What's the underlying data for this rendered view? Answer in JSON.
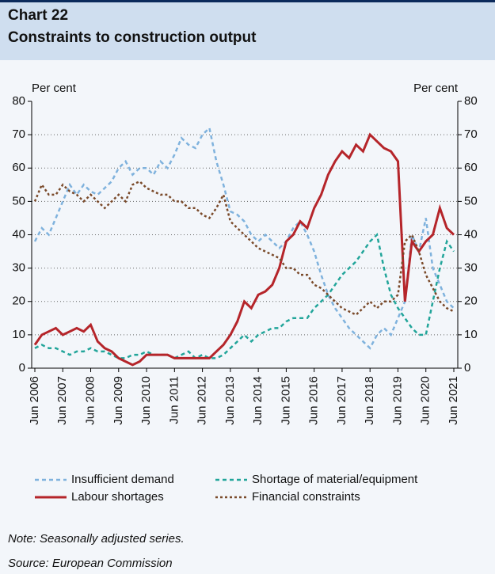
{
  "chart_data": {
    "type": "line",
    "title": "Chart 22",
    "subtitle": "Constraints to construction output",
    "y_label": "Per cent",
    "y2_label": "Per cent",
    "note": "Note: Seasonally adjusted series.",
    "source": "Source: European Commission",
    "x": [
      "2006-06",
      "2006-09",
      "2006-12",
      "2007-03",
      "2007-06",
      "2007-09",
      "2007-12",
      "2008-03",
      "2008-06",
      "2008-09",
      "2008-12",
      "2009-03",
      "2009-06",
      "2009-09",
      "2009-12",
      "2010-03",
      "2010-06",
      "2010-09",
      "2010-12",
      "2011-03",
      "2011-06",
      "2011-09",
      "2011-12",
      "2012-03",
      "2012-06",
      "2012-09",
      "2012-12",
      "2013-03",
      "2013-06",
      "2013-09",
      "2013-12",
      "2014-03",
      "2014-06",
      "2014-09",
      "2014-12",
      "2015-03",
      "2015-06",
      "2015-09",
      "2015-12",
      "2016-03",
      "2016-06",
      "2016-09",
      "2016-12",
      "2017-03",
      "2017-06",
      "2017-09",
      "2017-12",
      "2018-03",
      "2018-06",
      "2018-09",
      "2018-12",
      "2019-03",
      "2019-06",
      "2019-09",
      "2019-12",
      "2020-03",
      "2020-06",
      "2020-09",
      "2020-12",
      "2021-03",
      "2021-06"
    ],
    "series": [
      {
        "name": "Insufficient demand",
        "color": "#7fb2dd",
        "style": "dashed",
        "values": [
          38,
          42,
          40,
          45,
          50,
          55,
          52,
          55,
          53,
          52,
          54,
          56,
          60,
          62,
          58,
          60,
          60,
          58,
          62,
          60,
          64,
          69,
          67,
          66,
          70,
          72,
          62,
          55,
          47,
          46,
          44,
          40,
          38,
          40,
          38,
          36,
          38,
          42,
          44,
          40,
          35,
          28,
          22,
          18,
          15,
          12,
          10,
          8,
          6,
          10,
          12,
          10,
          15,
          20,
          40,
          35,
          45,
          30,
          25,
          20,
          18
        ]
      },
      {
        "name": "Shortage of material/equipment",
        "color": "#22a59a",
        "style": "dashed",
        "values": [
          6,
          7,
          6,
          6,
          5,
          4,
          5,
          5,
          6,
          5,
          5,
          4,
          3,
          3,
          4,
          4,
          5,
          4,
          4,
          4,
          3,
          4,
          5,
          3,
          4,
          3,
          3,
          4,
          6,
          8,
          10,
          8,
          10,
          11,
          12,
          12,
          14,
          15,
          15,
          15,
          18,
          20,
          22,
          25,
          28,
          30,
          32,
          35,
          38,
          40,
          30,
          22,
          18,
          15,
          12,
          10,
          10,
          20,
          30,
          38,
          35
        ]
      },
      {
        "name": "Labour shortages",
        "color": "#b5252a",
        "style": "solid",
        "values": [
          7,
          10,
          11,
          12,
          10,
          11,
          12,
          11,
          13,
          8,
          6,
          5,
          3,
          2,
          1,
          2,
          4,
          4,
          4,
          4,
          3,
          3,
          3,
          3,
          3,
          3,
          5,
          7,
          10,
          14,
          20,
          18,
          22,
          23,
          25,
          30,
          38,
          40,
          44,
          42,
          48,
          52,
          58,
          62,
          65,
          63,
          67,
          65,
          70,
          68,
          66,
          65,
          62,
          20,
          38,
          35,
          38,
          40,
          48,
          42,
          40
        ]
      },
      {
        "name": "Financial constraints",
        "color": "#7a4a2a",
        "style": "dotted",
        "values": [
          50,
          55,
          52,
          52,
          55,
          53,
          52,
          50,
          52,
          50,
          48,
          50,
          52,
          50,
          55,
          56,
          54,
          53,
          52,
          52,
          50,
          50,
          48,
          48,
          46,
          45,
          48,
          52,
          44,
          42,
          40,
          38,
          36,
          35,
          34,
          33,
          30,
          30,
          28,
          28,
          25,
          24,
          22,
          20,
          18,
          17,
          16,
          18,
          20,
          18,
          20,
          20,
          22,
          38,
          40,
          35,
          28,
          24,
          20,
          18,
          17
        ]
      }
    ],
    "xlim": [
      "2006-06",
      "2021-06"
    ],
    "xticks": [
      {
        "value": "2006-06",
        "label": "Jun 2006"
      },
      {
        "value": "2007-06",
        "label": "Jun 2007"
      },
      {
        "value": "2008-06",
        "label": "Jun 2008"
      },
      {
        "value": "2009-06",
        "label": "Jun 2009"
      },
      {
        "value": "2010-06",
        "label": "Jun 2010"
      },
      {
        "value": "2011-06",
        "label": "Jun 2011"
      },
      {
        "value": "2012-06",
        "label": "Jun 2012"
      },
      {
        "value": "2013-06",
        "label": "Jun 2013"
      },
      {
        "value": "2014-06",
        "label": "Jun 2014"
      },
      {
        "value": "2015-06",
        "label": "Jun 2015"
      },
      {
        "value": "2016-06",
        "label": "Jun 2016"
      },
      {
        "value": "2017-06",
        "label": "Jun 2017"
      },
      {
        "value": "2018-06",
        "label": "Jun 2018"
      },
      {
        "value": "2019-06",
        "label": "Jun 2019"
      },
      {
        "value": "2020-06",
        "label": "Jun 2020"
      },
      {
        "value": "2021-06",
        "label": "Jun 2021"
      }
    ],
    "ylim": [
      0,
      80
    ],
    "yticks": [
      0,
      10,
      20,
      30,
      40,
      50,
      60,
      70,
      80
    ],
    "y2lim": [
      0,
      80
    ],
    "y2ticks": [
      0,
      10,
      20,
      30,
      40,
      50,
      60,
      70,
      80
    ],
    "grid": true
  }
}
